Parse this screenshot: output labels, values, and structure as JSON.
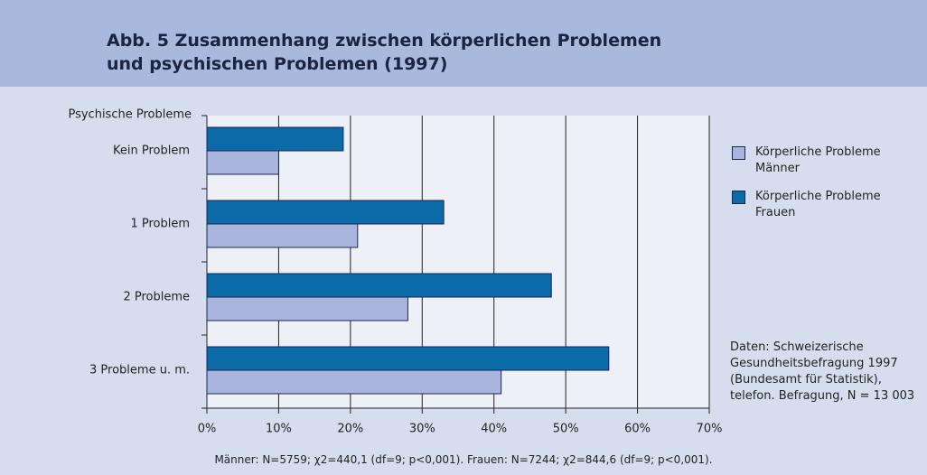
{
  "chart_data": {
    "type": "bar",
    "orientation": "horizontal",
    "title": "Abb. 5  Zusammenhang zwischen körperlichen Problemen und psychischen Problemen (1997)",
    "y_label": "Psychische  Probleme",
    "categories": [
      "Kein Problem",
      "1 Problem",
      "2 Probleme",
      "3 Probleme u. m."
    ],
    "series": [
      {
        "name": "Körperliche Probleme Männer",
        "color": "#a9b5dd",
        "values": [
          10,
          21,
          28,
          41
        ]
      },
      {
        "name": "Körperliche Probleme Frauen",
        "color": "#0b6aa8",
        "values": [
          19,
          33,
          48,
          56
        ]
      }
    ],
    "xlim": [
      0,
      70
    ],
    "xticks": [
      {
        "value": 0,
        "label": "0%"
      },
      {
        "value": 10,
        "label": "10%"
      },
      {
        "value": 20,
        "label": "20%"
      },
      {
        "value": 30,
        "label": "30%"
      },
      {
        "value": 40,
        "label": "40%"
      },
      {
        "value": 50,
        "label": "50%"
      },
      {
        "value": 60,
        "label": "60%"
      },
      {
        "value": 70,
        "label": "70%"
      }
    ],
    "grid": true,
    "legend": "right",
    "source_note": "Daten: Schweizerische Gesundheitsbefragung 1997 (Bundesamt für Statistik), telefon. Befragung, N = 13 003",
    "footnote": "Männer: N=5759; χ2=440,1 (df=9; p<0,001). Frauen: N=7244; χ2=844,6 (df=9; p<0,001)."
  }
}
